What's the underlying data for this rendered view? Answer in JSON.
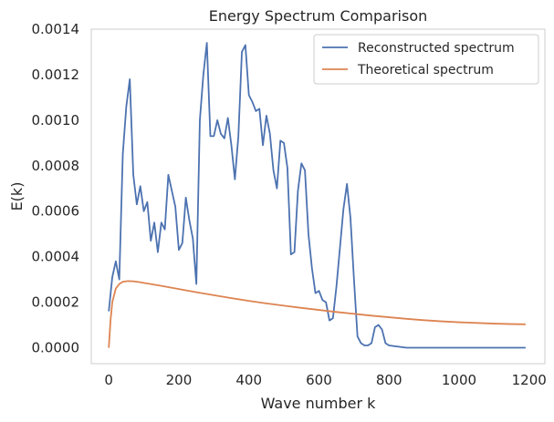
{
  "chart_data": {
    "type": "line",
    "title": "Energy Spectrum Comparison",
    "xlabel": "Wave number k",
    "ylabel": "E(k)",
    "xlim": [
      -50,
      1245
    ],
    "ylim": [
      -7e-05,
      0.0014
    ],
    "xticks": [
      0,
      200,
      400,
      600,
      800,
      1000,
      1200
    ],
    "xtick_labels": [
      "0",
      "200",
      "400",
      "600",
      "800",
      "1000",
      "1200"
    ],
    "yticks": [
      0.0,
      0.0002,
      0.0004,
      0.0006,
      0.0008,
      0.001,
      0.0012,
      0.0014
    ],
    "ytick_labels": [
      "0.0000",
      "0.0002",
      "0.0004",
      "0.0006",
      "0.0008",
      "0.0010",
      "0.0012",
      "0.0014"
    ],
    "grid": false,
    "legend_position": "top-right",
    "series": [
      {
        "name": "Reconstructed spectrum",
        "color": "#4c72b0",
        "points": [
          [
            0,
            0.00016
          ],
          [
            10,
            0.00031
          ],
          [
            20,
            0.00038
          ],
          [
            30,
            0.0003
          ],
          [
            40,
            0.00085
          ],
          [
            50,
            0.00106
          ],
          [
            60,
            0.00118
          ],
          [
            70,
            0.00076
          ],
          [
            80,
            0.00063
          ],
          [
            90,
            0.00071
          ],
          [
            100,
            0.0006
          ],
          [
            110,
            0.00064
          ],
          [
            120,
            0.00047
          ],
          [
            130,
            0.00055
          ],
          [
            140,
            0.00042
          ],
          [
            150,
            0.00055
          ],
          [
            160,
            0.00052
          ],
          [
            170,
            0.00076
          ],
          [
            180,
            0.00069
          ],
          [
            190,
            0.00062
          ],
          [
            200,
            0.00043
          ],
          [
            210,
            0.00046
          ],
          [
            220,
            0.00066
          ],
          [
            230,
            0.00056
          ],
          [
            240,
            0.00048
          ],
          [
            250,
            0.00028
          ],
          [
            260,
            0.001
          ],
          [
            270,
            0.0012
          ],
          [
            280,
            0.00134
          ],
          [
            290,
            0.00093
          ],
          [
            300,
            0.00093
          ],
          [
            310,
            0.001
          ],
          [
            320,
            0.00094
          ],
          [
            330,
            0.00092
          ],
          [
            340,
            0.00101
          ],
          [
            350,
            0.00089
          ],
          [
            360,
            0.00074
          ],
          [
            370,
            0.00093
          ],
          [
            380,
            0.0013
          ],
          [
            390,
            0.00133
          ],
          [
            400,
            0.00111
          ],
          [
            410,
            0.00108
          ],
          [
            420,
            0.00104
          ],
          [
            430,
            0.00105
          ],
          [
            440,
            0.00089
          ],
          [
            450,
            0.00102
          ],
          [
            460,
            0.00094
          ],
          [
            470,
            0.00078
          ],
          [
            480,
            0.0007
          ],
          [
            490,
            0.00091
          ],
          [
            500,
            0.0009
          ],
          [
            510,
            0.00079
          ],
          [
            520,
            0.00041
          ],
          [
            530,
            0.00042
          ],
          [
            540,
            0.00069
          ],
          [
            550,
            0.00081
          ],
          [
            560,
            0.00078
          ],
          [
            570,
            0.0005
          ],
          [
            580,
            0.00035
          ],
          [
            590,
            0.00024
          ],
          [
            600,
            0.00025
          ],
          [
            610,
            0.00021
          ],
          [
            620,
            0.0002
          ],
          [
            630,
            0.00012
          ],
          [
            640,
            0.00013
          ],
          [
            650,
            0.00027
          ],
          [
            660,
            0.00044
          ],
          [
            670,
            0.00061
          ],
          [
            680,
            0.00072
          ],
          [
            690,
            0.00057
          ],
          [
            700,
            0.0003
          ],
          [
            710,
            5e-05
          ],
          [
            720,
            2e-05
          ],
          [
            730,
            1e-05
          ],
          [
            740,
            1e-05
          ],
          [
            750,
            2e-05
          ],
          [
            760,
            9e-05
          ],
          [
            770,
            0.0001
          ],
          [
            780,
            8e-05
          ],
          [
            790,
            2e-05
          ],
          [
            800,
            1e-05
          ],
          [
            850,
            0.0
          ],
          [
            900,
            0.0
          ],
          [
            950,
            0.0
          ],
          [
            1000,
            0.0
          ],
          [
            1050,
            0.0
          ],
          [
            1100,
            0.0
          ],
          [
            1150,
            0.0
          ],
          [
            1190,
            0.0
          ]
        ]
      },
      {
        "name": "Theoretical spectrum",
        "color": "#dd8452",
        "points": [
          [
            0,
            0.0
          ],
          [
            5,
            0.00012
          ],
          [
            10,
            0.0002
          ],
          [
            20,
            0.00026
          ],
          [
            30,
            0.00028
          ],
          [
            40,
            0.00029
          ],
          [
            55,
            0.000293
          ],
          [
            70,
            0.000292
          ],
          [
            85,
            0.000289
          ],
          [
            100,
            0.000285
          ],
          [
            150,
            0.000272
          ],
          [
            200,
            0.000258
          ],
          [
            250,
            0.000244
          ],
          [
            300,
            0.000231
          ],
          [
            350,
            0.000218
          ],
          [
            400,
            0.000206
          ],
          [
            450,
            0.000195
          ],
          [
            500,
            0.000185
          ],
          [
            550,
            0.000175
          ],
          [
            600,
            0.000166
          ],
          [
            650,
            0.000157
          ],
          [
            700,
            0.000149
          ],
          [
            750,
            0.000141
          ],
          [
            800,
            0.000134
          ],
          [
            850,
            0.000127
          ],
          [
            900,
            0.000121
          ],
          [
            950,
            0.000116
          ],
          [
            1000,
            0.000112
          ],
          [
            1050,
            0.000109
          ],
          [
            1100,
            0.000106
          ],
          [
            1150,
            0.000104
          ],
          [
            1190,
            0.000103
          ]
        ]
      }
    ]
  }
}
